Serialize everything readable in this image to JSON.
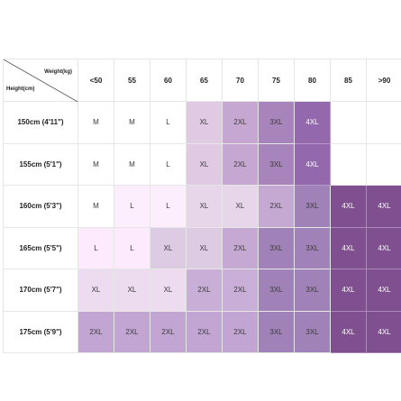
{
  "table": {
    "corner": {
      "top": "Weight(kg)",
      "bottom": "Height(cm)"
    },
    "columns": [
      "<50",
      "55",
      "60",
      "65",
      "70",
      "75",
      "80",
      "85",
      ">90"
    ],
    "rows": [
      {
        "label": "150cm (4'11\")",
        "cells": [
          "M",
          "M",
          "L",
          "XL",
          "2XL",
          "3XL",
          "4XL",
          null,
          null
        ],
        "colors": [
          "#ffffff",
          "#ffffff",
          "#ffffff",
          "#dfc9e3",
          "#c6a7d2",
          "#a884bc",
          "#9468ad",
          "#ffffff",
          "#ffffff"
        ]
      },
      {
        "label": "155cm (5'1\")",
        "cells": [
          "M",
          "M",
          "L",
          "XL",
          "2XL",
          "3XL",
          "4XL",
          null,
          null
        ],
        "colors": [
          "#ffffff",
          "#ffffff",
          "#ffffff",
          "#dfc9e3",
          "#c6a7d2",
          "#a884bc",
          "#9468ad",
          "#ffffff",
          "#ffffff"
        ]
      },
      {
        "label": "160cm (5'3\")",
        "cells": [
          "M",
          "L",
          "L",
          "XL",
          "XL",
          "2XL",
          "3XL",
          "4XL",
          "4XL"
        ],
        "colors": [
          "#ffffff",
          "#fdeefd",
          "#fdeefd",
          "#e7d5ea",
          "#e7d5ea",
          "#c6a9d3",
          "#a182b8",
          "#7f4f90",
          "#7f4f90"
        ]
      },
      {
        "label": "165cm (5'5\")",
        "cells": [
          "L",
          "L",
          "XL",
          "XL",
          "2XL",
          "3XL",
          "3XL",
          "4XL",
          "4XL"
        ],
        "colors": [
          "#fdeafc",
          "#fdeafc",
          "#ddcbe4",
          "#ddcbe4",
          "#c6a9d3",
          "#a182b8",
          "#a182b8",
          "#7f4f90",
          "#7f4f90"
        ]
      },
      {
        "label": "170cm (5'7\")",
        "cells": [
          "XL",
          "XL",
          "XL",
          "2XL",
          "2XL",
          "3XL",
          "3XL",
          "4XL",
          "4XL"
        ],
        "colors": [
          "#eddcef",
          "#eddcef",
          "#eddcef",
          "#c9aed8",
          "#c9aed8",
          "#a182b8",
          "#a182b8",
          "#7f4f90",
          "#7f4f90"
        ]
      },
      {
        "label": "175cm (5'9\")",
        "cells": [
          "2XL",
          "2XL",
          "2XL",
          "2XL",
          "2XL",
          "3XL",
          "3XL",
          "4XL",
          "4XL"
        ],
        "colors": [
          "#c2a5d3",
          "#c2a5d3",
          "#c2a5d3",
          "#c2a5d3",
          "#c2a5d3",
          "#a182b8",
          "#a182b8",
          "#7f4f90",
          "#7f4f90"
        ]
      }
    ]
  }
}
